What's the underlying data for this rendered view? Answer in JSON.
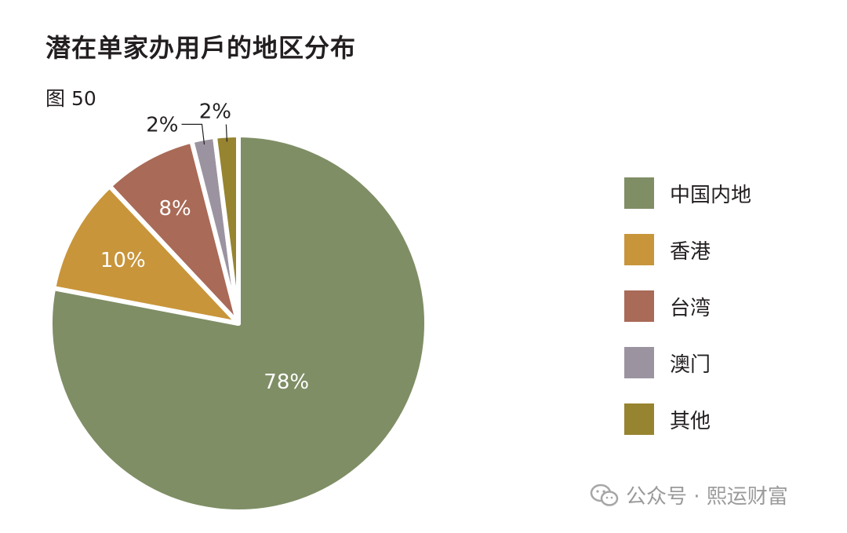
{
  "chart_data": {
    "type": "pie",
    "title": "潜在单家办用戶的地区分布",
    "figure_label": "图 50",
    "slices": [
      {
        "label": "中国内地",
        "value": 78,
        "display": "78%",
        "color": "#7f8e65"
      },
      {
        "label": "香港",
        "value": 10,
        "display": "10%",
        "color": "#c8953a"
      },
      {
        "label": "台湾",
        "value": 8,
        "display": "8%",
        "color": "#a96a57"
      },
      {
        "label": "澳门",
        "value": 2,
        "display": "2%",
        "color": "#9b94a0"
      },
      {
        "label": "其他",
        "value": 2,
        "display": "2%",
        "color": "#968430"
      }
    ],
    "legend_position": "right"
  },
  "watermark": {
    "icon": "wechat-icon",
    "text": "公众号 · 熙运财富"
  }
}
